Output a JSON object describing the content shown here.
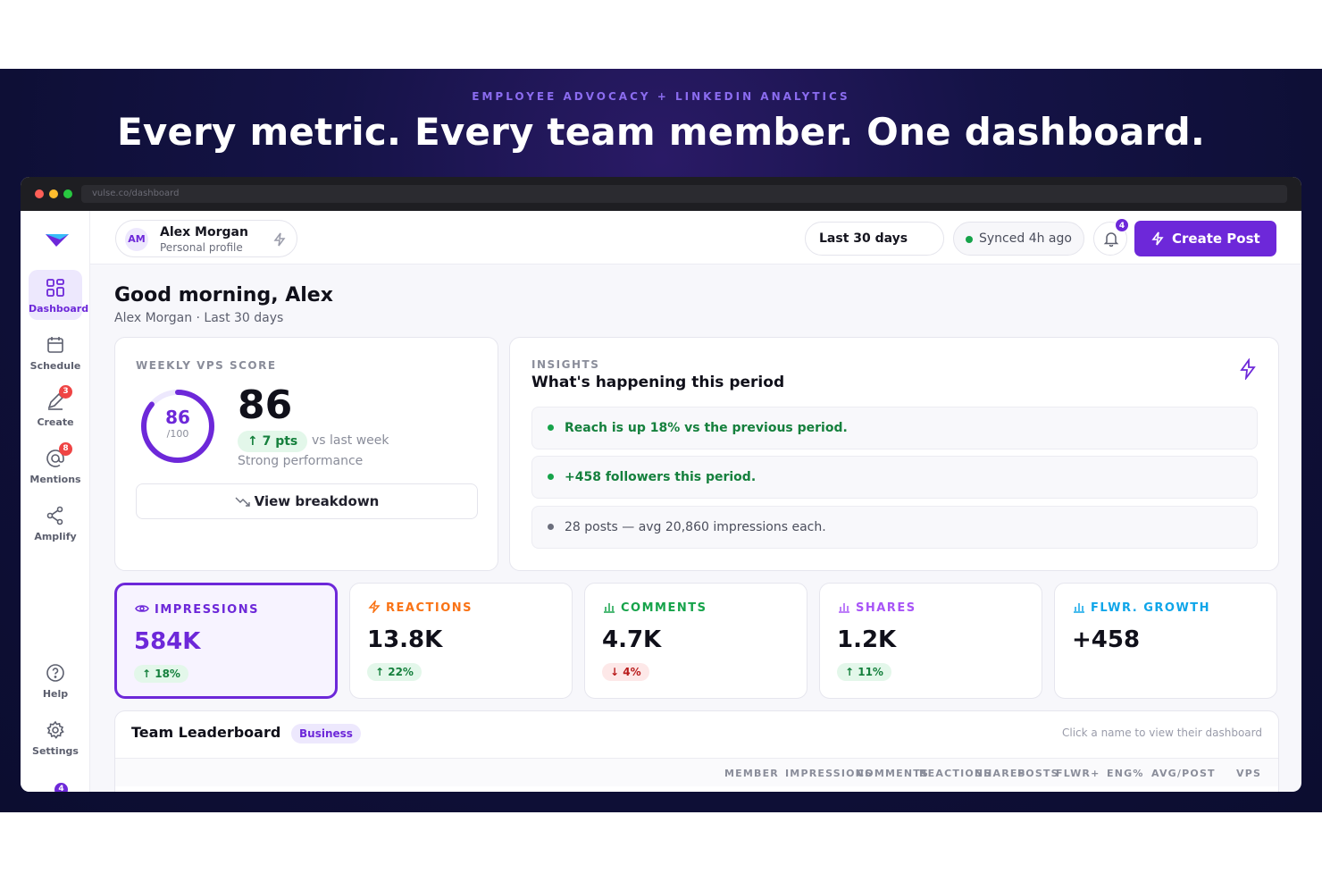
{
  "hero": {
    "eyebrow": "EMPLOYEE ADVOCACY + LINKEDIN ANALYTICS",
    "headline": "Every metric. Every team member. One dashboard."
  },
  "browser": {
    "url": "vulse.co/dashboard"
  },
  "sidebar": {
    "items": [
      {
        "label": "Dashboard",
        "icon": "grid-icon",
        "active": true
      },
      {
        "label": "Schedule",
        "icon": "calendar-icon"
      },
      {
        "label": "Create",
        "icon": "pen-icon",
        "badge": "3"
      },
      {
        "label": "Mentions",
        "icon": "at-icon",
        "badge": "8"
      },
      {
        "label": "Amplify",
        "icon": "share-icon"
      },
      {
        "label": "Help",
        "icon": "help-icon"
      },
      {
        "label": "Settings",
        "icon": "gear-icon"
      }
    ],
    "more_badge": "4"
  },
  "topbar": {
    "avatar_initials": "AM",
    "profile_name": "Alex Morgan",
    "profile_sub": "Personal profile",
    "range": "Last 30 days",
    "sync_status": "Synced 4h ago",
    "notifications": "4",
    "create_label": "Create Post"
  },
  "greeting": {
    "title": "Good morning, Alex",
    "subtitle": "Alex Morgan · Last 30 days"
  },
  "vps": {
    "caption": "WEEKLY VPS SCORE",
    "ring_value": "86",
    "ring_max": "/100",
    "ring_fraction": 0.86,
    "score": "86",
    "delta": "↑ 7 pts",
    "delta_note": "vs last week",
    "performance": "Strong performance",
    "breakdown_label": "View breakdown"
  },
  "insights": {
    "caption": "INSIGHTS",
    "title": "What's happening this period",
    "rows": [
      "Reach is up 18% vs the previous period.",
      "+458 followers this period.",
      "28 posts — avg 20,860 impressions each."
    ]
  },
  "metrics": [
    {
      "label": "IMPRESSIONS",
      "value": "584K",
      "change": "↑ 18%",
      "color": "#6d28d9"
    },
    {
      "label": "REACTIONS",
      "value": "13.8K",
      "change": "↑ 22%",
      "color": "#f97316"
    },
    {
      "label": "COMMENTS",
      "value": "4.7K",
      "change": "↓ 4%",
      "color": "#16a34a"
    },
    {
      "label": "SHARES",
      "value": "1.2K",
      "change": "↑ 11%",
      "color": "#a855f7"
    },
    {
      "label": "FLWR. GROWTH",
      "value": "+458",
      "change": "",
      "color": "#0ea5e9"
    }
  ],
  "leaderboard": {
    "title": "Team Leaderboard",
    "badge": "Business",
    "hint": "Click a name to view their dashboard",
    "columns": [
      "MEMBER",
      "IMPRESSIONS",
      "COMMENTS",
      "REACTIONS",
      "SHARES",
      "POSTS",
      "FLWR+",
      "ENG%",
      "AVG/POST",
      "VPS"
    ]
  }
}
